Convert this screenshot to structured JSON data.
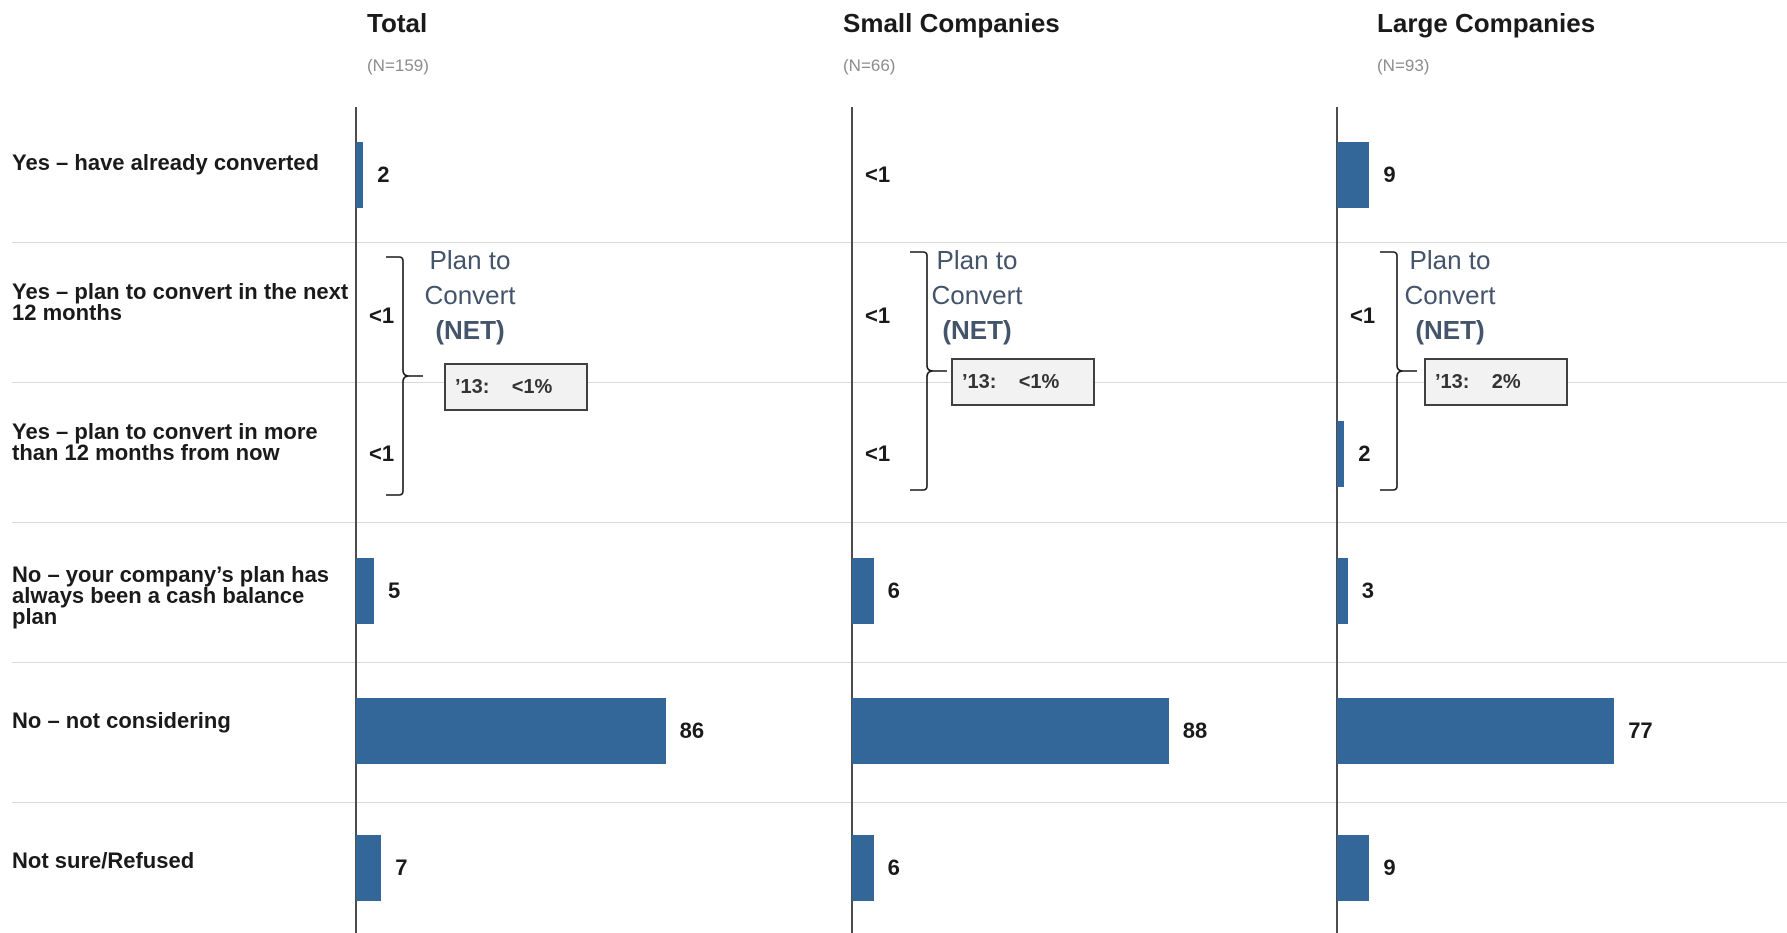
{
  "chart_data": {
    "type": "bar",
    "orientation": "horizontal",
    "categories": [
      "Yes – have already converted",
      "Yes – plan to convert in the next 12 months",
      "Yes – plan to convert in more than 12 months from now",
      "No – your company’s plan has always been a cash balance plan",
      "No – not considering",
      "Not sure/Refused"
    ],
    "series": [
      {
        "name": "Total",
        "n_label": "(N=159)",
        "values": [
          2,
          0.5,
          0.5,
          5,
          86,
          7
        ],
        "value_labels": [
          "2",
          "<1",
          "<1",
          "5",
          "86",
          "7"
        ],
        "net": {
          "label_line1": "Plan to",
          "label_line2": "Convert",
          "label_line3": "(NET)",
          "prior_year": "’13:    <1%"
        }
      },
      {
        "name": "Small Companies",
        "n_label": "(N=66)",
        "values": [
          0.5,
          0.5,
          0.5,
          6,
          88,
          6
        ],
        "value_labels": [
          "<1",
          "<1",
          "<1",
          "6",
          "88",
          "6"
        ],
        "net": {
          "label_line1": "Plan to",
          "label_line2": "Convert",
          "label_line3": "(NET)",
          "prior_year": "’13:    <1%"
        }
      },
      {
        "name": "Large Companies",
        "n_label": "(N=93)",
        "values": [
          9,
          0.5,
          2,
          3,
          77,
          9
        ],
        "value_labels": [
          "9",
          "<1",
          "2",
          "3",
          "77",
          "9"
        ],
        "net": {
          "label_line1": "Plan to",
          "label_line2": "Convert",
          "label_line3": "(NET)",
          "prior_year": "’13:    2%"
        }
      }
    ],
    "bar_color": "#336699",
    "net_label_color": "#44546a",
    "xlim": [
      0,
      100
    ],
    "grid": false,
    "legend": "none"
  }
}
